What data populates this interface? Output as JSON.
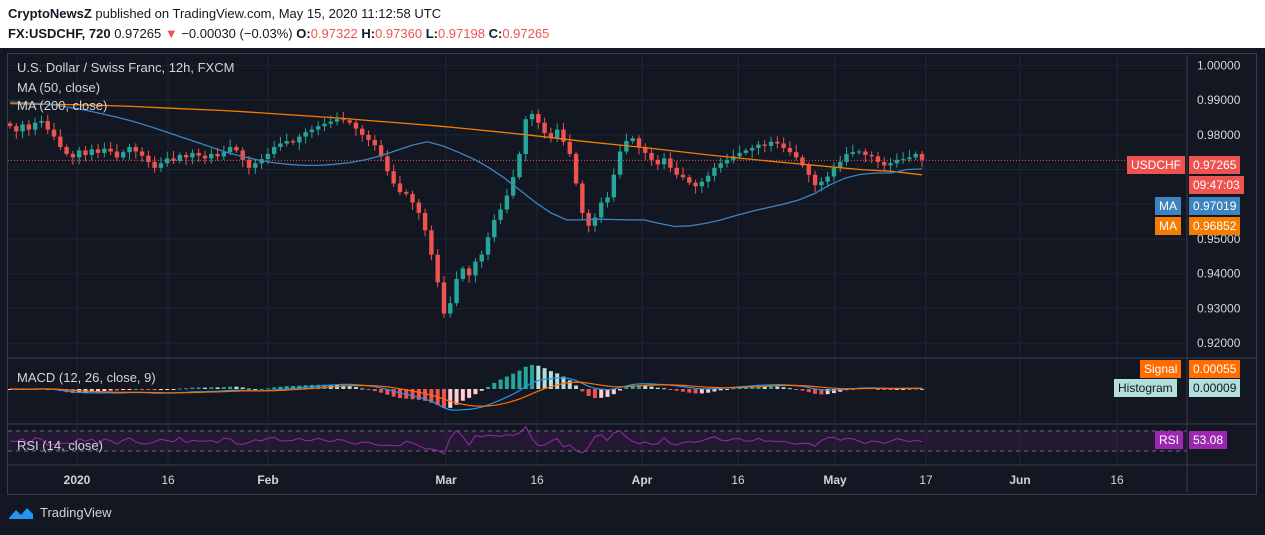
{
  "header": {
    "publisher": "CryptoNewsZ",
    "published_line": " published on TradingView.com, May 15, 2020 11:12:58 UTC",
    "symbol": "FX:USDCHF, 720",
    "last": "0.97265",
    "arrow": "▼",
    "change": "−0.00030 (−0.03%)",
    "o_label": "O:",
    "o_value": "0.97322",
    "h_label": "H:",
    "h_value": "0.97360",
    "l_label": "L:",
    "l_value": "0.97198",
    "c_label": "C:",
    "c_value": "0.97265"
  },
  "legend": {
    "title": "U.S. Dollar / Swiss Franc, 12h, FXCM",
    "ma50": "MA (50, close)",
    "ma200": "MA (200, close)",
    "macd": "MACD (12, 26, close, 9)",
    "rsi": "RSI (14, close)"
  },
  "price_tags": {
    "symbol": "USDCHF",
    "price": "0.97265",
    "countdown": "09:47:03",
    "ma_label": "MA",
    "ma50": "0.97019",
    "ma200": "0.96852",
    "signal_label": "Signal",
    "signal": "0.00055",
    "hist_label": "Histogram",
    "hist": "0.00009",
    "rsi_label": "RSI",
    "rsi": "53.08"
  },
  "footer": {
    "brand": "TradingView"
  },
  "colors": {
    "bg": "#131722",
    "up": "#26a69a",
    "down": "#ef5350",
    "ma50": "#3d84bf",
    "ma200": "#f57c00",
    "macd": "#2196f3",
    "signal": "#ff6d00",
    "rsi": "#9c27b0"
  },
  "chart_data": {
    "type": "candlestick",
    "title": "U.S. Dollar / Swiss Franc, 12h, FXCM",
    "y_ticks": [
      "1.00000",
      "0.99000",
      "0.98000",
      "0.97000",
      "0.96000",
      "0.95000",
      "0.94000",
      "0.93000",
      "0.92000"
    ],
    "ylim": [
      0.916,
      1.003
    ],
    "x_ticks": [
      "2020",
      "16",
      "Feb",
      "Mar",
      "16",
      "Apr",
      "16",
      "May",
      "17",
      "Jun",
      "16"
    ],
    "closes": [
      0.9825,
      0.981,
      0.983,
      0.9815,
      0.9835,
      0.984,
      0.9815,
      0.9795,
      0.9765,
      0.9745,
      0.9735,
      0.9755,
      0.9742,
      0.9758,
      0.9748,
      0.976,
      0.9752,
      0.9735,
      0.975,
      0.9765,
      0.9752,
      0.974,
      0.9722,
      0.9705,
      0.9718,
      0.9732,
      0.9725,
      0.9742,
      0.9735,
      0.9748,
      0.974,
      0.9732,
      0.9745,
      0.9738,
      0.975,
      0.9765,
      0.9755,
      0.9728,
      0.9705,
      0.9718,
      0.973,
      0.9745,
      0.9765,
      0.9775,
      0.9782,
      0.9778,
      0.9795,
      0.9808,
      0.9815,
      0.9825,
      0.9832,
      0.9838,
      0.9845,
      0.9842,
      0.9835,
      0.9818,
      0.98,
      0.9785,
      0.977,
      0.9738,
      0.9695,
      0.966,
      0.9635,
      0.963,
      0.9605,
      0.9575,
      0.9525,
      0.9455,
      0.9375,
      0.9285,
      0.9315,
      0.9385,
      0.9415,
      0.9395,
      0.9435,
      0.9455,
      0.9505,
      0.9555,
      0.9585,
      0.9625,
      0.9678,
      0.9745,
      0.9845,
      0.986,
      0.9835,
      0.9805,
      0.9792,
      0.9815,
      0.978,
      0.9745,
      0.966,
      0.9575,
      0.9538,
      0.9562,
      0.9605,
      0.962,
      0.9685,
      0.9752,
      0.9782,
      0.979,
      0.9765,
      0.9748,
      0.9728,
      0.9715,
      0.9732,
      0.9705,
      0.9685,
      0.9678,
      0.9662,
      0.9652,
      0.9665,
      0.9682,
      0.9705,
      0.9718,
      0.9728,
      0.9738,
      0.9748,
      0.9755,
      0.9762,
      0.9772,
      0.9768,
      0.978,
      0.9775,
      0.9762,
      0.975,
      0.9735,
      0.9712,
      0.9685,
      0.9655,
      0.9665,
      0.968,
      0.9705,
      0.9722,
      0.9745,
      0.975,
      0.9752,
      0.9742,
      0.9738,
      0.9722,
      0.9712,
      0.9718,
      0.9728,
      0.973,
      0.9735,
      0.9745,
      0.9728
    ],
    "ma50": [
      0.9895,
      0.9892,
      0.989,
      0.9885,
      0.9878,
      0.987,
      0.986,
      0.985,
      0.9838,
      0.9825,
      0.981,
      0.9795,
      0.978,
      0.9765,
      0.975,
      0.9738,
      0.9728,
      0.972,
      0.9715,
      0.9712,
      0.9712,
      0.9715,
      0.972,
      0.9728,
      0.974,
      0.9755,
      0.977,
      0.978,
      0.9768,
      0.975,
      0.973,
      0.9705,
      0.9675,
      0.964,
      0.9605,
      0.9575,
      0.9555,
      0.9555,
      0.9557,
      0.9556,
      0.9555,
      0.9555,
      0.9545,
      0.9536,
      0.9538,
      0.9545,
      0.9555,
      0.9568,
      0.958,
      0.959,
      0.96,
      0.9612,
      0.963,
      0.9655,
      0.9675,
      0.9686,
      0.969,
      0.969,
      0.97,
      0.9702
    ],
    "ma200": [
      0.989,
      0.9888,
      0.9887,
      0.9885,
      0.9882,
      0.9878,
      0.9874,
      0.987,
      0.9865,
      0.9859,
      0.9853,
      0.9847,
      0.984,
      0.9833,
      0.9826,
      0.9818,
      0.9809,
      0.98,
      0.979,
      0.978,
      0.9771,
      0.9762,
      0.9752,
      0.9742,
      0.9733,
      0.9724,
      0.9716,
      0.9708,
      0.97,
      0.9695,
      0.9685
    ]
  }
}
